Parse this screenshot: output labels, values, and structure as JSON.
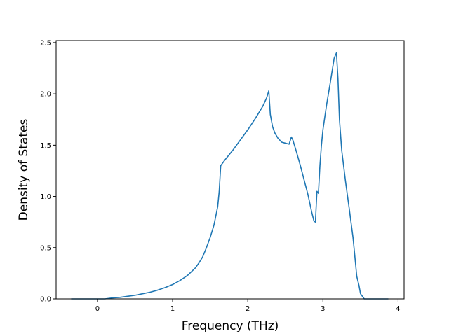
{
  "chart_data": {
    "type": "line",
    "title": "",
    "xlabel": "Frequency (THz)",
    "ylabel": "Density of States",
    "xlim": [
      -0.55,
      4.08
    ],
    "ylim": [
      0.0,
      2.52
    ],
    "xticks": [
      0,
      1,
      2,
      3,
      4
    ],
    "yticks": [
      0.0,
      0.5,
      1.0,
      1.5,
      2.0,
      2.5
    ],
    "xtick_labels": [
      "0",
      "1",
      "2",
      "3",
      "4"
    ],
    "ytick_labels": [
      "0.0",
      "0.5",
      "1.0",
      "1.5",
      "2.0",
      "2.5"
    ],
    "grid": false,
    "legend": "none",
    "series": [
      {
        "color": "#1f77b4",
        "x": [
          -0.35,
          -0.1,
          0.0,
          0.1,
          0.2,
          0.3,
          0.4,
          0.5,
          0.6,
          0.7,
          0.8,
          0.9,
          1.0,
          1.1,
          1.2,
          1.3,
          1.35,
          1.4,
          1.45,
          1.5,
          1.55,
          1.6,
          1.62,
          1.64,
          1.66,
          1.7,
          1.8,
          1.9,
          2.0,
          2.1,
          2.2,
          2.25,
          2.28,
          2.3,
          2.33,
          2.36,
          2.4,
          2.45,
          2.5,
          2.55,
          2.58,
          2.6,
          2.65,
          2.7,
          2.75,
          2.8,
          2.85,
          2.88,
          2.9,
          2.92,
          2.94,
          2.96,
          2.98,
          3.0,
          3.05,
          3.1,
          3.15,
          3.18,
          3.2,
          3.22,
          3.25,
          3.3,
          3.35,
          3.4,
          3.42,
          3.45,
          3.48,
          3.5,
          3.55,
          3.6,
          3.7,
          3.87
        ],
        "y": [
          0.0,
          0.0,
          0.0,
          0.0,
          0.01,
          0.015,
          0.025,
          0.035,
          0.05,
          0.065,
          0.085,
          0.11,
          0.14,
          0.18,
          0.23,
          0.3,
          0.35,
          0.41,
          0.5,
          0.6,
          0.72,
          0.9,
          1.05,
          1.3,
          1.32,
          1.36,
          1.45,
          1.55,
          1.65,
          1.76,
          1.88,
          1.96,
          2.03,
          1.8,
          1.68,
          1.62,
          1.57,
          1.53,
          1.52,
          1.51,
          1.58,
          1.55,
          1.43,
          1.3,
          1.16,
          1.02,
          0.85,
          0.76,
          0.75,
          1.05,
          1.03,
          1.3,
          1.5,
          1.65,
          1.9,
          2.12,
          2.35,
          2.4,
          2.15,
          1.75,
          1.45,
          1.15,
          0.88,
          0.6,
          0.45,
          0.22,
          0.13,
          0.05,
          0.0,
          0.0,
          0.0,
          0.0
        ]
      }
    ]
  }
}
